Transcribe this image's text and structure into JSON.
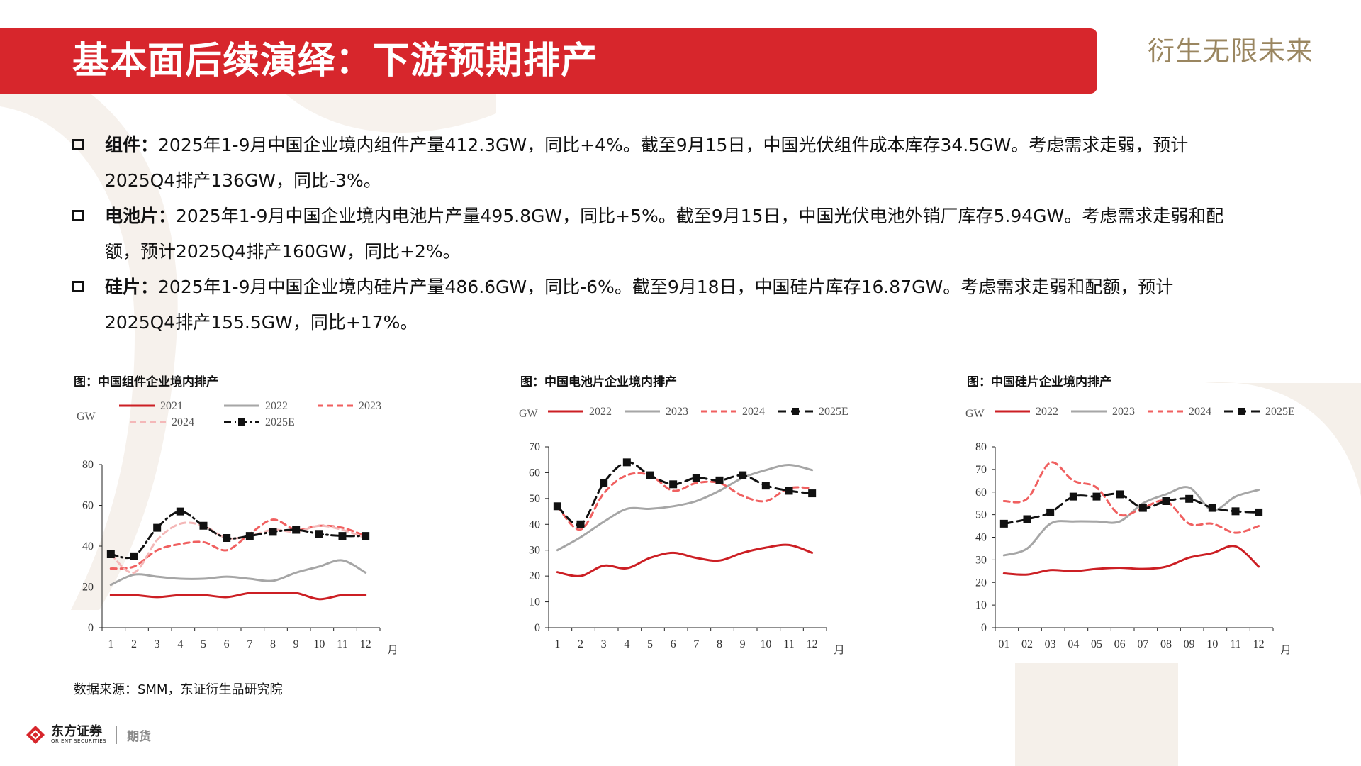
{
  "header": {
    "title": "基本面后续演绎：下游预期排产",
    "slogan": "衍生无限未来"
  },
  "bullets": [
    {
      "label": "组件：",
      "line1": "2025年1-9月中国企业境内组件产量412.3GW，同比+4%。截至9月15日，中国光伏组件成本库存34.5GW。考虑需求走弱，预计",
      "line2": "2025Q4排产136GW，同比-3%。"
    },
    {
      "label": "电池片：",
      "line1": "2025年1-9月中国企业境内电池片产量495.8GW，同比+5%。截至9月15日，中国光伏电池外销厂库存5.94GW。考虑需求走弱和配",
      "line2": "额，预计2025Q4排产160GW，同比+2%。"
    },
    {
      "label": "硅片：",
      "line1": "2025年1-9月中国企业境内硅片产量486.6GW，同比-6%。截至9月18日，中国硅片库存16.87GW。考虑需求走弱和配额，预计",
      "line2": "2025Q4排产155.5GW，同比+17%。"
    }
  ],
  "source_note": "数据来源：SMM，东证衍生品研究院",
  "logo": {
    "name_cn": "东方证券",
    "name_en": "ORIENT SECURITIES",
    "division": "期货"
  },
  "chart_data": [
    {
      "type": "line",
      "caption": "图：中国组件企业境内排产",
      "ylabel": "GW",
      "xunit": "月",
      "ylim": [
        0,
        80
      ],
      "yticks": [
        0,
        20,
        40,
        60,
        80
      ],
      "categories": [
        "1",
        "2",
        "3",
        "4",
        "5",
        "6",
        "7",
        "8",
        "9",
        "10",
        "11",
        "12"
      ],
      "legend_layout": "top",
      "series": [
        {
          "name": "2021",
          "color": "#cc1f24",
          "style": "solid",
          "marker": false,
          "values": [
            16,
            16,
            15,
            16,
            16,
            15,
            17,
            17,
            17,
            14,
            16,
            16
          ]
        },
        {
          "name": "2022",
          "color": "#a6a6a6",
          "style": "solid",
          "marker": false,
          "values": [
            21,
            26,
            25,
            24,
            24,
            25,
            24,
            23,
            27,
            30,
            33,
            27
          ]
        },
        {
          "name": "2023",
          "color": "#f06060",
          "style": "dash",
          "marker": false,
          "values": [
            29,
            30,
            38,
            41,
            42,
            38,
            46,
            53,
            48,
            50,
            49,
            45
          ]
        },
        {
          "name": "2024",
          "color": "#f4b8b8",
          "style": "dash",
          "marker": false,
          "values": [
            36,
            27,
            43,
            51,
            50,
            44,
            45,
            48,
            47,
            50,
            48,
            44
          ]
        },
        {
          "name": "2025E",
          "color": "#111111",
          "style": "dashdot",
          "marker": true,
          "values": [
            36,
            35,
            49,
            57,
            50,
            44,
            45,
            47,
            48,
            46,
            45,
            45
          ]
        }
      ]
    },
    {
      "type": "line",
      "caption": "图：中国电池片企业境内排产",
      "ylabel": "GW",
      "xunit": "月",
      "ylim": [
        0,
        70
      ],
      "yticks": [
        0,
        10,
        20,
        30,
        40,
        50,
        60,
        70
      ],
      "categories": [
        "1",
        "2",
        "3",
        "4",
        "5",
        "6",
        "7",
        "8",
        "9",
        "10",
        "11",
        "12"
      ],
      "legend_layout": "top",
      "series": [
        {
          "name": "2022",
          "color": "#cc1f24",
          "style": "solid",
          "marker": false,
          "values": [
            21.5,
            20,
            24,
            23,
            27,
            29,
            27,
            26,
            29,
            31,
            32,
            29
          ]
        },
        {
          "name": "2023",
          "color": "#a6a6a6",
          "style": "solid",
          "marker": false,
          "values": [
            30,
            35,
            41,
            46,
            46,
            47,
            49,
            53,
            58,
            61,
            63,
            61
          ]
        },
        {
          "name": "2024",
          "color": "#f06060",
          "style": "dash",
          "marker": false,
          "values": [
            47,
            38,
            52,
            59,
            59,
            53,
            56,
            56,
            51,
            49,
            54,
            54
          ]
        },
        {
          "name": "2025E",
          "color": "#111111",
          "style": "longdash",
          "marker": true,
          "values": [
            47,
            40,
            56,
            64,
            59,
            55.5,
            58,
            57,
            59,
            55,
            53,
            52
          ]
        }
      ]
    },
    {
      "type": "line",
      "caption": "图：中国硅片企业境内排产",
      "ylabel": "GW",
      "xunit": "月",
      "ylim": [
        0,
        80
      ],
      "yticks": [
        0,
        10,
        20,
        30,
        40,
        50,
        60,
        70,
        80
      ],
      "categories": [
        "01",
        "02",
        "03",
        "04",
        "05",
        "06",
        "07",
        "08",
        "09",
        "10",
        "11",
        "12"
      ],
      "legend_layout": "top",
      "series": [
        {
          "name": "2022",
          "color": "#cc1f24",
          "style": "solid",
          "marker": false,
          "values": [
            24,
            23.5,
            25.5,
            25,
            26,
            26.5,
            26,
            27,
            31,
            33,
            36,
            27
          ]
        },
        {
          "name": "2023",
          "color": "#a6a6a6",
          "style": "solid",
          "marker": false,
          "values": [
            32,
            35,
            46,
            47,
            47,
            47,
            55,
            59,
            62,
            52,
            58,
            61
          ]
        },
        {
          "name": "2024",
          "color": "#f06060",
          "style": "dash",
          "marker": false,
          "values": [
            56,
            57,
            73,
            65,
            62,
            50,
            53,
            56,
            46,
            46,
            42,
            45
          ]
        },
        {
          "name": "2025E",
          "color": "#111111",
          "style": "longdash",
          "marker": true,
          "values": [
            46,
            48,
            51,
            58,
            58,
            59,
            53,
            56,
            57,
            53,
            51.5,
            51
          ]
        }
      ]
    }
  ]
}
